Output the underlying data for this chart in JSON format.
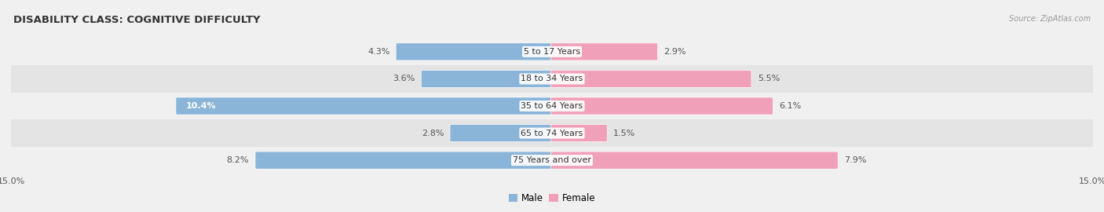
{
  "title": "DISABILITY CLASS: COGNITIVE DIFFICULTY",
  "source": "Source: ZipAtlas.com",
  "categories": [
    "5 to 17 Years",
    "18 to 34 Years",
    "35 to 64 Years",
    "65 to 74 Years",
    "75 Years and over"
  ],
  "male_values": [
    4.3,
    3.6,
    10.4,
    2.8,
    8.2
  ],
  "female_values": [
    2.9,
    5.5,
    6.1,
    1.5,
    7.9
  ],
  "male_color": "#8ab4d8",
  "female_color": "#f0a0b8",
  "male_color_bright": "#6b9cc7",
  "female_color_bright": "#e8708e",
  "x_max": 15.0,
  "bar_height": 0.58,
  "row_bg_light": "#f0f0f0",
  "row_bg_dark": "#e4e4e4",
  "bg_color": "#f0f0f0",
  "title_fontsize": 9.5,
  "label_fontsize": 8,
  "tick_fontsize": 8,
  "legend_fontsize": 8.5
}
